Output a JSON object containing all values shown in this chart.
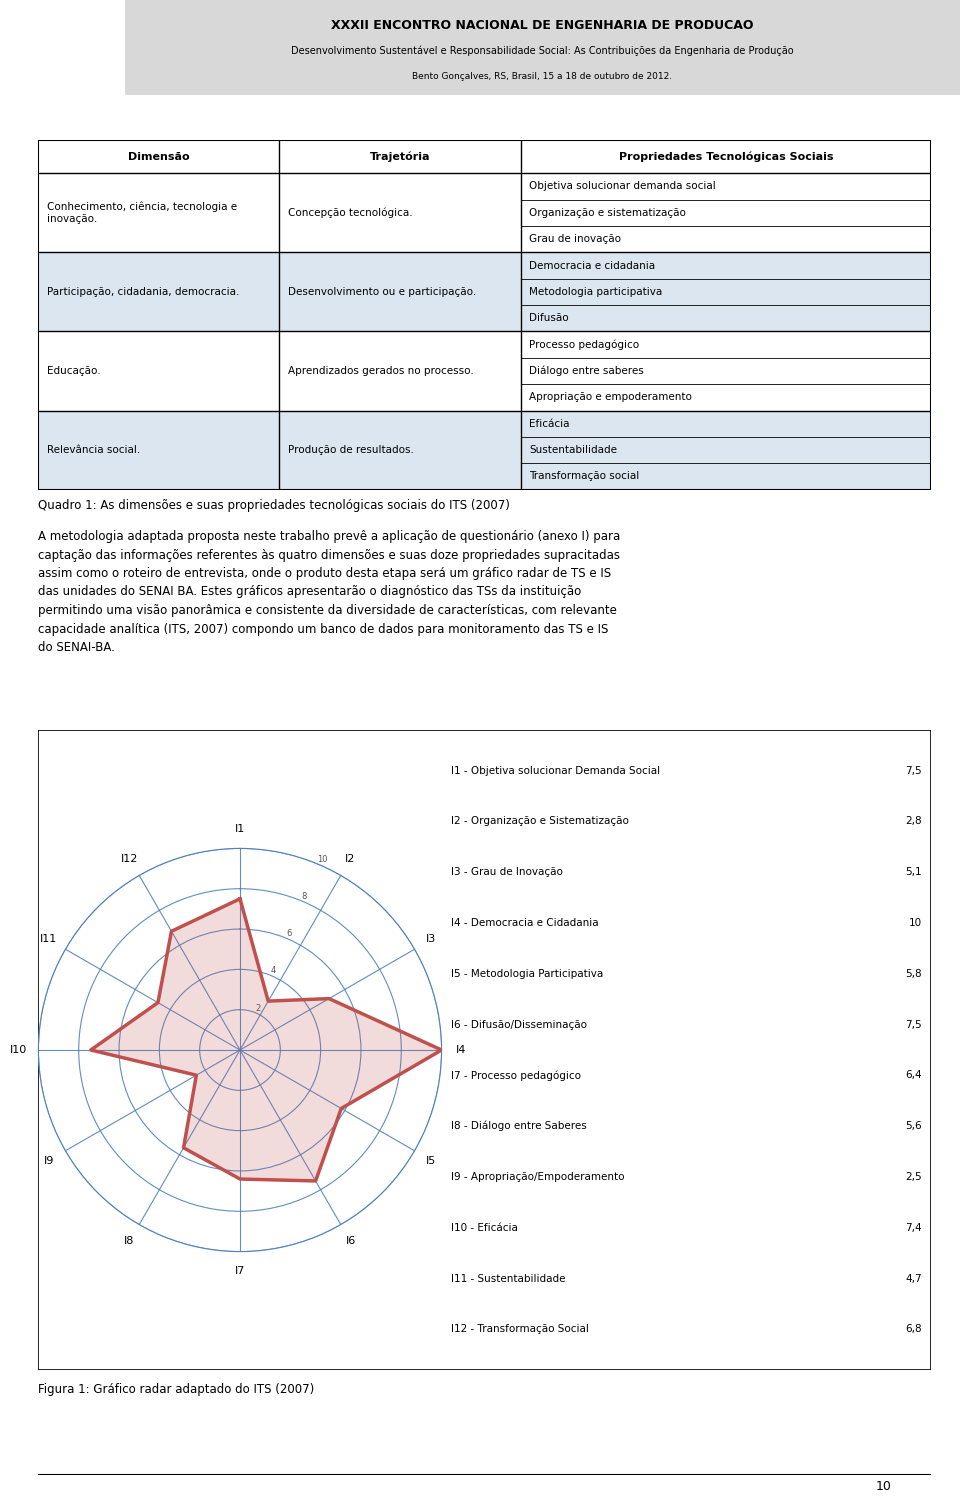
{
  "header_title": "XXXII ENCONTRO NACIONAL DE ENGENHARIA DE PRODUCAO",
  "header_subtitle": "Desenvolvimento Sustentável e Responsabilidade Social: As Contribuições da Engenharia de Produção",
  "header_location": "Bento Gonçalves, RS, Brasil, 15 a 18 de outubro de 2012.",
  "table_headers": [
    "Dimensão",
    "Trajetória",
    "Propriedades Tecnológicas Sociais"
  ],
  "table_rows": [
    {
      "dimensao": "Conhecimento, ciência, tecnologia e\ninovação.",
      "trajetoria": "Concepção tecnológica.",
      "propriedades": [
        "Objetiva solucionar demanda social",
        "Organização e sistematização",
        "Grau de inovação"
      ],
      "bg": "#ffffff"
    },
    {
      "dimensao": "Participação, cidadania, democracia.",
      "trajetoria": "Desenvolvimento ou e participação.",
      "propriedades": [
        "Democracia e cidadania",
        "Metodologia participativa",
        "Difusão"
      ],
      "bg": "#dce6f1"
    },
    {
      "dimensao": "Educação.",
      "trajetoria": "Aprendizados gerados no processo.",
      "propriedades": [
        "Processo pedagógico",
        "Diálogo entre saberes",
        "Apropriação e empoderamento"
      ],
      "bg": "#ffffff"
    },
    {
      "dimensao": "Relevância social.",
      "trajetoria": "Produção de resultados.",
      "propriedades": [
        "Eficácia",
        "Sustentabilidade",
        "Transformação social"
      ],
      "bg": "#dce6f1"
    }
  ],
  "quadro_caption": "Quadro 1: As dimensões e suas propriedades tecnológicas sociais do ITS (2007)",
  "para_lines": [
    "A metodologia adaptada proposta neste trabalho prevê a aplicação de questionário (anexo I) para",
    "captação das informações referentes às quatro dimensões e suas doze propriedades supracitadas",
    "assim como o roteiro de entrevista, onde o produto desta etapa será um gráfico radar de TS e IS",
    "das unidades do SENAI BA. Estes gráficos apresentarão o diagnóstico das TSs da instituição",
    "permitindo uma visão panorâmica e consistente da diversidade de características, com relevante",
    "capacidade analítica (ITS, 2007) compondo um banco de dados para monitoramento das TS e IS",
    "do SENAI-BA."
  ],
  "radar_labels": [
    "I1",
    "I2",
    "I3",
    "I4",
    "I5",
    "I6",
    "I7",
    "I8",
    "I9",
    "I10",
    "I11",
    "I12"
  ],
  "radar_values": [
    7.5,
    2.8,
    5.1,
    10.0,
    5.8,
    7.5,
    6.4,
    5.6,
    2.5,
    7.4,
    4.7,
    6.8
  ],
  "radar_max": 10,
  "radar_ticks": [
    2,
    4,
    6,
    8,
    10
  ],
  "radar_tick_labels": [
    "2",
    "4",
    "6",
    "8",
    "10"
  ],
  "legend_items": [
    [
      "I1 - Objetiva solucionar Demanda Social",
      "7,5"
    ],
    [
      "I2 - Organização e Sistematização",
      "2,8"
    ],
    [
      "I3 - Grau de Inovação",
      "5,1"
    ],
    [
      "I4 - Democracia e Cidadania",
      "10"
    ],
    [
      "I5 - Metodologia Participativa",
      "5,8"
    ],
    [
      "I6 - Difusão/Disseminação",
      "7,5"
    ],
    [
      "I7 - Processo pedagógico",
      "6,4"
    ],
    [
      "I8 - Diálogo entre Saberes",
      "5,6"
    ],
    [
      "I9 - Apropriação/Empoderamento",
      "2,5"
    ],
    [
      "I10 - Eficácia",
      "7,4"
    ],
    [
      "I11 - Sustentabilidade",
      "4,7"
    ],
    [
      "I12 - Transformação Social",
      "6,8"
    ]
  ],
  "figura_caption": "Figura 1: Gráfico radar adaptado do ITS (2007)",
  "radar_line_color": "#c0504d",
  "radar_fill_color": "#c0504d",
  "radar_grid_color": "#4f81bd",
  "bg_color": "#ffffff",
  "page_number": "10"
}
